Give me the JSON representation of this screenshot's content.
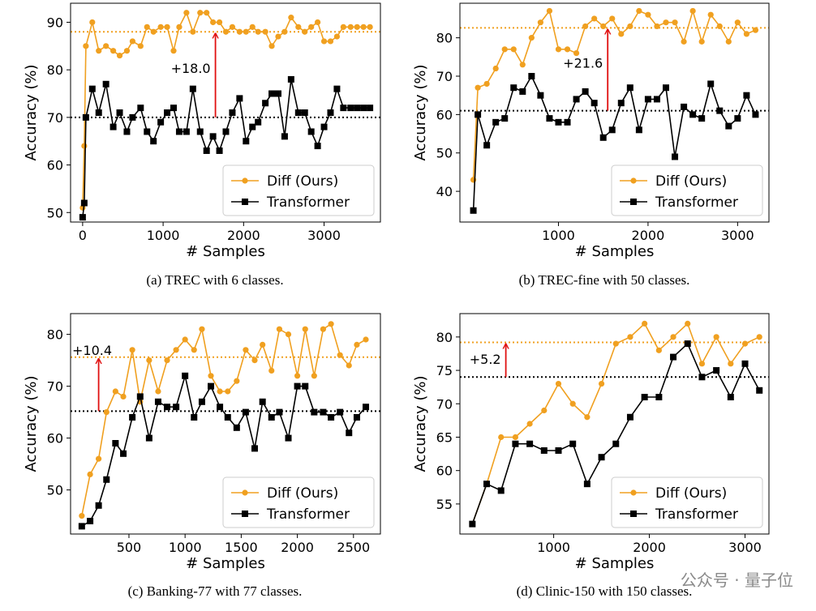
{
  "colors": {
    "diff": "#f0a020",
    "transformer": "#000000",
    "arrow": "#e01010"
  },
  "chart_data": [
    {
      "type": "line",
      "caption": "(a) TREC with 6 classes.",
      "xlabel": "# Samples",
      "ylabel": "Accuracy (%)",
      "xlim": [
        -150,
        3700
      ],
      "ylim": [
        48,
        94
      ],
      "xticks": [
        0,
        1000,
        2000,
        3000
      ],
      "yticks": [
        50,
        60,
        70,
        80,
        90
      ],
      "legend_position": "lower-right",
      "hlines": {
        "diff": 88,
        "transformer": 70
      },
      "annotation": {
        "text": "+18.0",
        "arrow_x": 1650,
        "from": 70,
        "to": 88
      },
      "series": [
        {
          "name": "Diff (Ours)",
          "key": "diff",
          "x": [
            0,
            20,
            40,
            120,
            200,
            290,
            380,
            460,
            550,
            620,
            720,
            800,
            880,
            970,
            1050,
            1130,
            1200,
            1290,
            1370,
            1460,
            1540,
            1620,
            1700,
            1780,
            1860,
            1950,
            2030,
            2110,
            2180,
            2270,
            2350,
            2430,
            2510,
            2590,
            2680,
            2760,
            2840,
            2920,
            3000,
            3080,
            3160,
            3240,
            3330,
            3410,
            3490,
            3570
          ],
          "y": [
            51,
            64,
            85,
            90,
            84,
            85,
            84,
            83,
            84,
            86,
            85,
            89,
            88,
            89,
            89,
            84,
            89,
            92,
            88,
            92,
            92,
            90,
            90,
            88,
            89,
            88,
            88,
            89,
            88,
            88,
            85,
            87,
            88,
            91,
            89,
            88,
            89,
            90,
            86,
            86,
            87,
            89,
            89,
            89,
            89,
            89
          ]
        },
        {
          "name": "Transformer",
          "key": "transformer",
          "x": [
            0,
            20,
            40,
            120,
            200,
            290,
            380,
            460,
            550,
            620,
            720,
            800,
            880,
            970,
            1050,
            1130,
            1200,
            1290,
            1370,
            1460,
            1540,
            1620,
            1700,
            1780,
            1860,
            1950,
            2030,
            2110,
            2180,
            2270,
            2350,
            2430,
            2510,
            2590,
            2680,
            2760,
            2840,
            2920,
            3000,
            3080,
            3160,
            3240,
            3330,
            3410,
            3490,
            3570
          ],
          "y": [
            49,
            52,
            70,
            76,
            71,
            77,
            68,
            71,
            67,
            70,
            72,
            67,
            65,
            69,
            71,
            72,
            67,
            67,
            76,
            67,
            63,
            66,
            63,
            67,
            71,
            74,
            65,
            68,
            69,
            73,
            75,
            75,
            66,
            78,
            71,
            71,
            67,
            64,
            68,
            71,
            76,
            72,
            72,
            72,
            72,
            72
          ]
        }
      ]
    },
    {
      "type": "line",
      "caption": "(b) TREC-fine with 50 classes.",
      "xlabel": "# Samples",
      "ylabel": "Accuracy (%)",
      "xlim": [
        -100,
        3350
      ],
      "ylim": [
        32,
        89
      ],
      "xticks": [
        1000,
        2000,
        3000
      ],
      "yticks": [
        40,
        50,
        60,
        70,
        80
      ],
      "legend_position": "lower-right",
      "hlines": {
        "diff": 82.6,
        "transformer": 61
      },
      "annotation": {
        "text": "+21.6",
        "arrow_x": 1550,
        "from": 61,
        "to": 82.6
      },
      "series": [
        {
          "name": "Diff (Ours)",
          "key": "diff",
          "x": [
            50,
            100,
            200,
            300,
            400,
            500,
            600,
            700,
            800,
            900,
            1000,
            1100,
            1200,
            1300,
            1400,
            1500,
            1600,
            1700,
            1800,
            1900,
            2000,
            2100,
            2200,
            2300,
            2400,
            2500,
            2600,
            2700,
            2800,
            2900,
            3000,
            3100,
            3200
          ],
          "y": [
            43,
            67,
            68,
            72,
            77,
            77,
            73,
            80,
            84,
            87,
            77,
            77,
            76,
            83,
            85,
            83,
            85,
            81,
            83,
            87,
            86,
            83,
            84,
            84,
            79,
            87,
            79,
            86,
            83,
            79,
            84,
            81,
            82
          ]
        },
        {
          "name": "Transformer",
          "key": "transformer",
          "x": [
            50,
            100,
            200,
            300,
            400,
            500,
            600,
            700,
            800,
            900,
            1000,
            1100,
            1200,
            1300,
            1400,
            1500,
            1600,
            1700,
            1800,
            1900,
            2000,
            2100,
            2200,
            2300,
            2400,
            2500,
            2600,
            2700,
            2800,
            2900,
            3000,
            3100,
            3200
          ],
          "y": [
            35,
            60,
            52,
            58,
            59,
            67,
            66,
            70,
            65,
            59,
            58,
            58,
            64,
            66,
            63,
            54,
            56,
            63,
            67,
            56,
            64,
            64,
            67,
            49,
            62,
            60,
            59,
            68,
            61,
            57,
            59,
            65,
            60
          ]
        }
      ]
    },
    {
      "type": "line",
      "caption": "(c) Banking-77 with 77 classes.",
      "xlabel": "# Samples",
      "ylabel": "Accuracy (%)",
      "xlim": [
        -20,
        2740
      ],
      "ylim": [
        41.5,
        84
      ],
      "xticks": [
        500,
        1000,
        1500,
        2000,
        2500
      ],
      "yticks": [
        50,
        60,
        70,
        80
      ],
      "legend_position": "lower-right",
      "hlines": {
        "diff": 75.6,
        "transformer": 65.2
      },
      "annotation": {
        "text": "+10.4",
        "arrow_x": 230,
        "from": 65.2,
        "to": 75.6
      },
      "series": [
        {
          "name": "Diff (Ours)",
          "key": "diff",
          "x": [
            80,
            154,
            230,
            300,
            380,
            450,
            530,
            600,
            680,
            760,
            840,
            920,
            1000,
            1080,
            1150,
            1230,
            1310,
            1380,
            1460,
            1540,
            1620,
            1690,
            1770,
            1840,
            1920,
            2000,
            2070,
            2150,
            2230,
            2300,
            2380,
            2460,
            2530,
            2610
          ],
          "y": [
            45,
            53,
            56,
            65,
            69,
            68,
            77,
            67,
            75,
            69,
            75,
            77,
            79,
            77,
            81,
            72,
            69,
            69,
            71,
            77,
            75,
            78,
            73,
            81,
            80,
            72,
            81,
            72,
            81,
            82,
            76,
            74,
            78,
            79
          ]
        },
        {
          "name": "Transformer",
          "key": "transformer",
          "x": [
            80,
            154,
            230,
            300,
            380,
            450,
            530,
            600,
            680,
            760,
            840,
            920,
            1000,
            1080,
            1150,
            1230,
            1310,
            1380,
            1460,
            1540,
            1620,
            1690,
            1770,
            1840,
            1920,
            2000,
            2070,
            2150,
            2230,
            2300,
            2380,
            2460,
            2530,
            2610
          ],
          "y": [
            43,
            44,
            47,
            52,
            59,
            57,
            64,
            68,
            60,
            67,
            66,
            66,
            72,
            64,
            67,
            70,
            66,
            64,
            62,
            65,
            58,
            67,
            64,
            65,
            60,
            70,
            70,
            65,
            65,
            64,
            65,
            61,
            64,
            66
          ]
        }
      ]
    },
    {
      "type": "line",
      "caption": "(d) Clinic-150 with 150 classes.",
      "xlabel": "# Samples",
      "ylabel": "Accuracy (%)",
      "xlim": [
        20,
        3250
      ],
      "ylim": [
        50.5,
        83.5
      ],
      "xticks": [
        1000,
        2000,
        3000
      ],
      "yticks": [
        55,
        60,
        65,
        70,
        75,
        80
      ],
      "legend_position": "lower-right",
      "hlines": {
        "diff": 79.2,
        "transformer": 74
      },
      "annotation": {
        "text": "+5.2",
        "arrow_x": 500,
        "from": 74,
        "to": 79.2
      },
      "series": [
        {
          "name": "Diff (Ours)",
          "key": "diff",
          "x": [
            150,
            300,
            450,
            600,
            750,
            900,
            1050,
            1200,
            1350,
            1500,
            1650,
            1800,
            1950,
            2100,
            2250,
            2400,
            2550,
            2700,
            2850,
            3000,
            3150
          ],
          "y": [
            52,
            58,
            65,
            65,
            67,
            69,
            73,
            70,
            68,
            73,
            79,
            80,
            82,
            78,
            80,
            82,
            76,
            80,
            76,
            79,
            80
          ]
        },
        {
          "name": "Transformer",
          "key": "transformer",
          "x": [
            150,
            300,
            450,
            600,
            750,
            900,
            1050,
            1200,
            1350,
            1500,
            1650,
            1800,
            1950,
            2100,
            2250,
            2400,
            2550,
            2700,
            2850,
            3000,
            3150
          ],
          "y": [
            52,
            58,
            57,
            64,
            64,
            63,
            63,
            64,
            58,
            62,
            64,
            68,
            71,
            71,
            77,
            79,
            74,
            75,
            71,
            76,
            72
          ]
        }
      ]
    }
  ],
  "watermark": "公众号 · 量子位"
}
